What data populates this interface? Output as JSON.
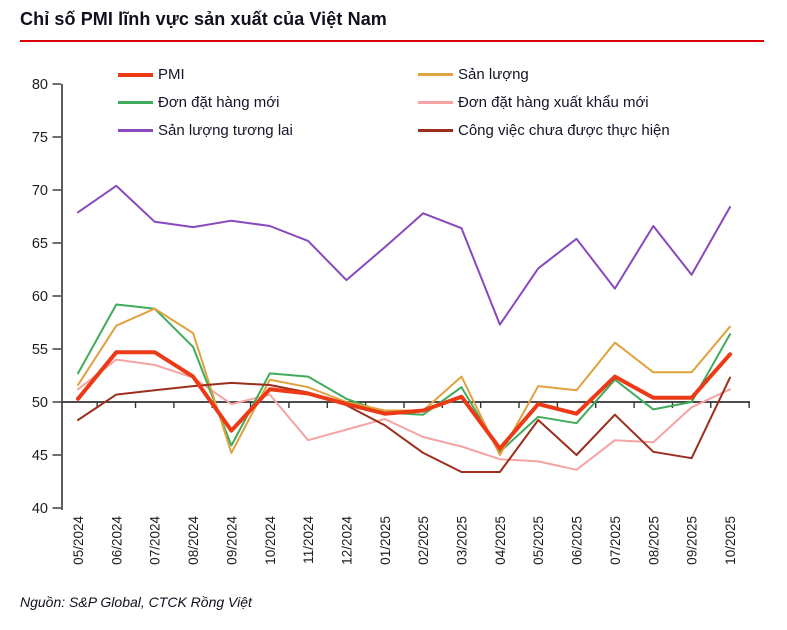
{
  "header": {
    "title": "Chỉ số PMI lĩnh vực sản xuất của Việt Nam"
  },
  "source": {
    "text": "Nguồn: S&P Global, CTCK Rồng Việt"
  },
  "colors": {
    "title_rule": "#d8040d",
    "axis": "#333333",
    "pmi": "#ed3a16",
    "output": "#e0a23e",
    "new_orders": "#41ab5d",
    "new_export_orders": "#f5a3a3",
    "future_output": "#8849bd",
    "backlogs": "#9c2e1c"
  },
  "chart_data": {
    "type": "line",
    "title": "Chỉ số PMI lĩnh vực sản xuất của Việt Nam",
    "xlabel": "",
    "ylabel": "",
    "ylim": [
      40,
      80
    ],
    "ytick_step": 5,
    "baseline": 50,
    "grid": false,
    "legend_position": "top-inside",
    "x": [
      "05/2024",
      "06/2024",
      "07/2024",
      "08/2024",
      "09/2024",
      "10/2024",
      "11/2024",
      "12/2024",
      "01/2025",
      "02/2025",
      "03/2025",
      "04/2025",
      "05/2025",
      "06/2025",
      "07/2025",
      "08/2025",
      "09/2025",
      "10/2025"
    ],
    "series": [
      {
        "name": "PMI",
        "color": "#ed3a16",
        "line_width": 4,
        "values": [
          50.3,
          54.7,
          54.7,
          52.4,
          47.3,
          51.2,
          50.8,
          49.8,
          48.9,
          49.2,
          50.5,
          45.6,
          49.8,
          48.9,
          52.4,
          50.4,
          50.4,
          54.5
        ]
      },
      {
        "name": "Sản lượng",
        "color": "#e0a23e",
        "line_width": 2,
        "values": [
          51.6,
          57.2,
          58.8,
          56.5,
          45.2,
          52.1,
          51.4,
          50.0,
          49.2,
          49.2,
          52.4,
          45.0,
          51.5,
          51.1,
          55.6,
          52.8,
          52.8,
          57.1
        ]
      },
      {
        "name": "Đơn đặt hàng mới",
        "color": "#41ab5d",
        "line_width": 2,
        "values": [
          52.7,
          59.2,
          58.8,
          55.2,
          45.9,
          52.7,
          52.4,
          50.3,
          49.0,
          48.8,
          51.4,
          45.3,
          48.6,
          48.0,
          52.1,
          49.3,
          50.0,
          56.4
        ]
      },
      {
        "name": "Đơn đặt hàng xuất khẩu mới",
        "color": "#f5a3a3",
        "line_width": 2,
        "values": [
          51.2,
          54.0,
          53.5,
          52.3,
          49.8,
          50.7,
          46.4,
          47.4,
          48.4,
          46.7,
          45.8,
          44.6,
          44.4,
          43.6,
          46.4,
          46.2,
          49.5,
          51.2
        ]
      },
      {
        "name": "Sản lượng tương lai",
        "color": "#8849bd",
        "line_width": 2,
        "values": [
          67.9,
          70.4,
          67.0,
          66.5,
          67.1,
          66.6,
          65.2,
          61.5,
          64.6,
          67.8,
          66.4,
          57.3,
          62.6,
          65.4,
          60.7,
          66.6,
          62.0,
          68.4
        ]
      },
      {
        "name": "Công việc chưa được thực hiện",
        "color": "#9c2e1c",
        "line_width": 2,
        "values": [
          48.3,
          50.7,
          51.1,
          51.5,
          51.8,
          51.6,
          50.9,
          49.7,
          47.8,
          45.2,
          43.4,
          43.4,
          48.3,
          45.0,
          48.8,
          45.3,
          44.7,
          52.3
        ]
      }
    ]
  }
}
